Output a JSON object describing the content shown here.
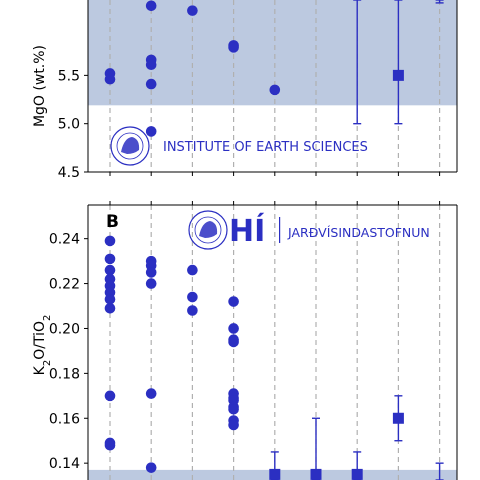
{
  "chart_data": [
    {
      "type": "scatter",
      "panel_letter": "",
      "ylabel": "MgO (wt.%)",
      "ylim": [
        4.5,
        6.28
      ],
      "yticks": [
        4.5,
        5.0,
        5.5
      ],
      "ytick_labels": [
        "4.5",
        "5.0",
        "5.5"
      ],
      "x_groups": 9,
      "shaded_band": [
        5.19,
        6.28
      ],
      "grid": "vertical dashed",
      "color": "#2b2fc2",
      "band_color": "#b8c6de",
      "series": [
        {
          "marker": "circle",
          "points": [
            {
              "x": 1,
              "y": 5.52
            },
            {
              "x": 1,
              "y": 5.46
            },
            {
              "x": 2,
              "y": 6.22
            },
            {
              "x": 2,
              "y": 5.66
            },
            {
              "x": 2,
              "y": 5.61
            },
            {
              "x": 2,
              "y": 5.41
            },
            {
              "x": 2,
              "y": 4.92
            },
            {
              "x": 3,
              "y": 6.17
            },
            {
              "x": 4,
              "y": 5.81
            },
            {
              "x": 4,
              "y": 5.79
            },
            {
              "x": 5,
              "y": 5.35
            }
          ]
        },
        {
          "marker": "square",
          "points": [
            {
              "x": 8,
              "y": 5.5,
              "err_low": 5.0,
              "err_high": 6.28
            },
            {
              "x": 10,
              "y": 5.45,
              "err_low": 4.7,
              "err_high": 6.28
            }
          ]
        },
        {
          "marker": "errorbar-only",
          "points": [
            {
              "x": 7,
              "err_low": 5.0,
              "err_high": 6.28
            },
            {
              "x": 9,
              "err_low": 6.25,
              "err_high": 6.28
            }
          ]
        }
      ]
    },
    {
      "type": "scatter",
      "panel_letter": "B",
      "ylabel": "K2O/TiO2",
      "ylim": [
        0.1325,
        0.255
      ],
      "yticks": [
        0.14,
        0.16,
        0.18,
        0.2,
        0.22,
        0.24
      ],
      "ytick_labels": [
        "0.14",
        "0.16",
        "0.18",
        "0.20",
        "0.22",
        "0.24"
      ],
      "shaded_band": [
        0.1325,
        0.137
      ],
      "grid": "vertical dashed",
      "color": "#2b2fc2",
      "band_color": "#b8c6de",
      "series": [
        {
          "marker": "circle",
          "points": [
            {
              "x": 1,
              "y": 0.239
            },
            {
              "x": 1,
              "y": 0.231
            },
            {
              "x": 1,
              "y": 0.226
            },
            {
              "x": 1,
              "y": 0.222
            },
            {
              "x": 1,
              "y": 0.219
            },
            {
              "x": 1,
              "y": 0.216
            },
            {
              "x": 1,
              "y": 0.213
            },
            {
              "x": 1,
              "y": 0.209
            },
            {
              "x": 1,
              "y": 0.17
            },
            {
              "x": 1,
              "y": 0.149
            },
            {
              "x": 1,
              "y": 0.148
            },
            {
              "x": 2,
              "y": 0.23
            },
            {
              "x": 2,
              "y": 0.228
            },
            {
              "x": 2,
              "y": 0.225
            },
            {
              "x": 2,
              "y": 0.22
            },
            {
              "x": 2,
              "y": 0.171
            },
            {
              "x": 2,
              "y": 0.138
            },
            {
              "x": 3,
              "y": 0.226
            },
            {
              "x": 3,
              "y": 0.214
            },
            {
              "x": 3,
              "y": 0.208
            },
            {
              "x": 4,
              "y": 0.212
            },
            {
              "x": 4,
              "y": 0.2
            },
            {
              "x": 4,
              "y": 0.195
            },
            {
              "x": 4,
              "y": 0.194
            },
            {
              "x": 4,
              "y": 0.171
            },
            {
              "x": 4,
              "y": 0.169
            },
            {
              "x": 4,
              "y": 0.168
            },
            {
              "x": 4,
              "y": 0.165
            },
            {
              "x": 4,
              "y": 0.164
            },
            {
              "x": 4,
              "y": 0.159
            },
            {
              "x": 4,
              "y": 0.157
            }
          ]
        },
        {
          "marker": "square",
          "points": [
            {
              "x": 5,
              "y": 0.135,
              "err_low": 0.1325,
              "err_high": 0.145
            },
            {
              "x": 6,
              "y": 0.135,
              "err_low": 0.1325,
              "err_high": 0.16
            },
            {
              "x": 7,
              "y": 0.135,
              "err_low": 0.1325,
              "err_high": 0.145
            },
            {
              "x": 8,
              "y": 0.16,
              "err_low": 0.15,
              "err_high": 0.17
            }
          ]
        },
        {
          "marker": "errorbar-only",
          "points": [
            {
              "x": 9,
              "err_low": 0.1325,
              "err_high": 0.14
            }
          ]
        }
      ]
    }
  ],
  "watermarks": {
    "top_text": "INSTITUTE OF EARTH SCIENCES",
    "bottom_logo": "HÍ",
    "bottom_text": "JARÐVÍSINDASTOFNUN",
    "seal_text": "UNIVERSITATIS ISLANDIAE SIGILLUM"
  }
}
